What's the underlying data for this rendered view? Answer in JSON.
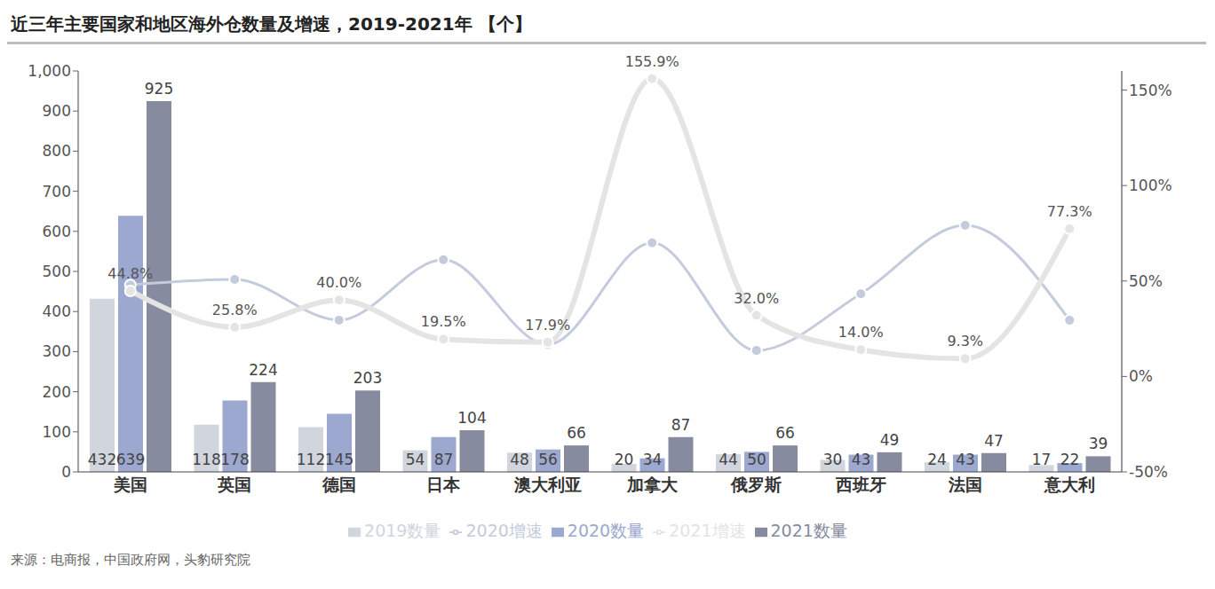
{
  "chart_data": {
    "type": "bar",
    "title": "近三年主要国家和地区海外仓数量及增速，2019-2021年 【个】",
    "source": "来源：电商报，中国政府网，头豹研究院",
    "categories": [
      "美国",
      "英国",
      "德国",
      "日本",
      "澳大利亚",
      "加拿大",
      "俄罗斯",
      "西班牙",
      "法国",
      "意大利"
    ],
    "series": [
      {
        "name": "2019数量",
        "type": "bar",
        "color": "#d0d5de",
        "data_labels": true,
        "values": [
          432,
          118,
          112,
          54,
          48,
          20,
          44,
          30,
          24,
          17
        ]
      },
      {
        "name": "2020数量",
        "type": "bar",
        "color": "#9ca8cf",
        "data_labels": true,
        "values": [
          639,
          178,
          145,
          87,
          56,
          34,
          50,
          43,
          43,
          22
        ]
      },
      {
        "name": "2021数量",
        "type": "bar",
        "color": "#878b9f",
        "data_labels": true,
        "values": [
          925,
          224,
          203,
          104,
          66,
          87,
          66,
          49,
          47,
          39
        ]
      },
      {
        "name": "2020增速",
        "type": "line",
        "axis": "y2",
        "color": "#c3cbdc",
        "marker": "circle",
        "data_labels": false,
        "values": [
          47.9,
          50.8,
          29.5,
          61.1,
          16.7,
          70.0,
          13.6,
          43.3,
          79.2,
          29.4
        ]
      },
      {
        "name": "2021增速",
        "type": "line",
        "axis": "y2",
        "color": "#e4e4e4",
        "marker": "circle",
        "data_labels": true,
        "values": [
          44.8,
          25.8,
          40.0,
          19.5,
          17.9,
          155.9,
          32.0,
          14.0,
          9.3,
          77.3
        ],
        "value_labels": [
          "44.8%",
          "25.8%",
          "40.0%",
          "19.5%",
          "17.9%",
          "155.9%",
          "32.0%",
          "14.0%",
          "9.3%",
          "77.3%"
        ]
      }
    ],
    "ylim": [
      0,
      1000
    ],
    "yticks": [
      0,
      100,
      200,
      300,
      400,
      500,
      600,
      700,
      800,
      900,
      {
        "value": 1000,
        "label": "1,000"
      }
    ],
    "y2lim": [
      -50,
      160
    ],
    "y2ticks": [
      {
        "value": -50,
        "label": "-50%"
      },
      {
        "value": 0,
        "label": "0%"
      },
      {
        "value": 50,
        "label": "50%"
      },
      {
        "value": 100,
        "label": "100%"
      },
      {
        "value": 150,
        "label": "150%"
      }
    ],
    "grid": false,
    "legend": "bottom"
  }
}
